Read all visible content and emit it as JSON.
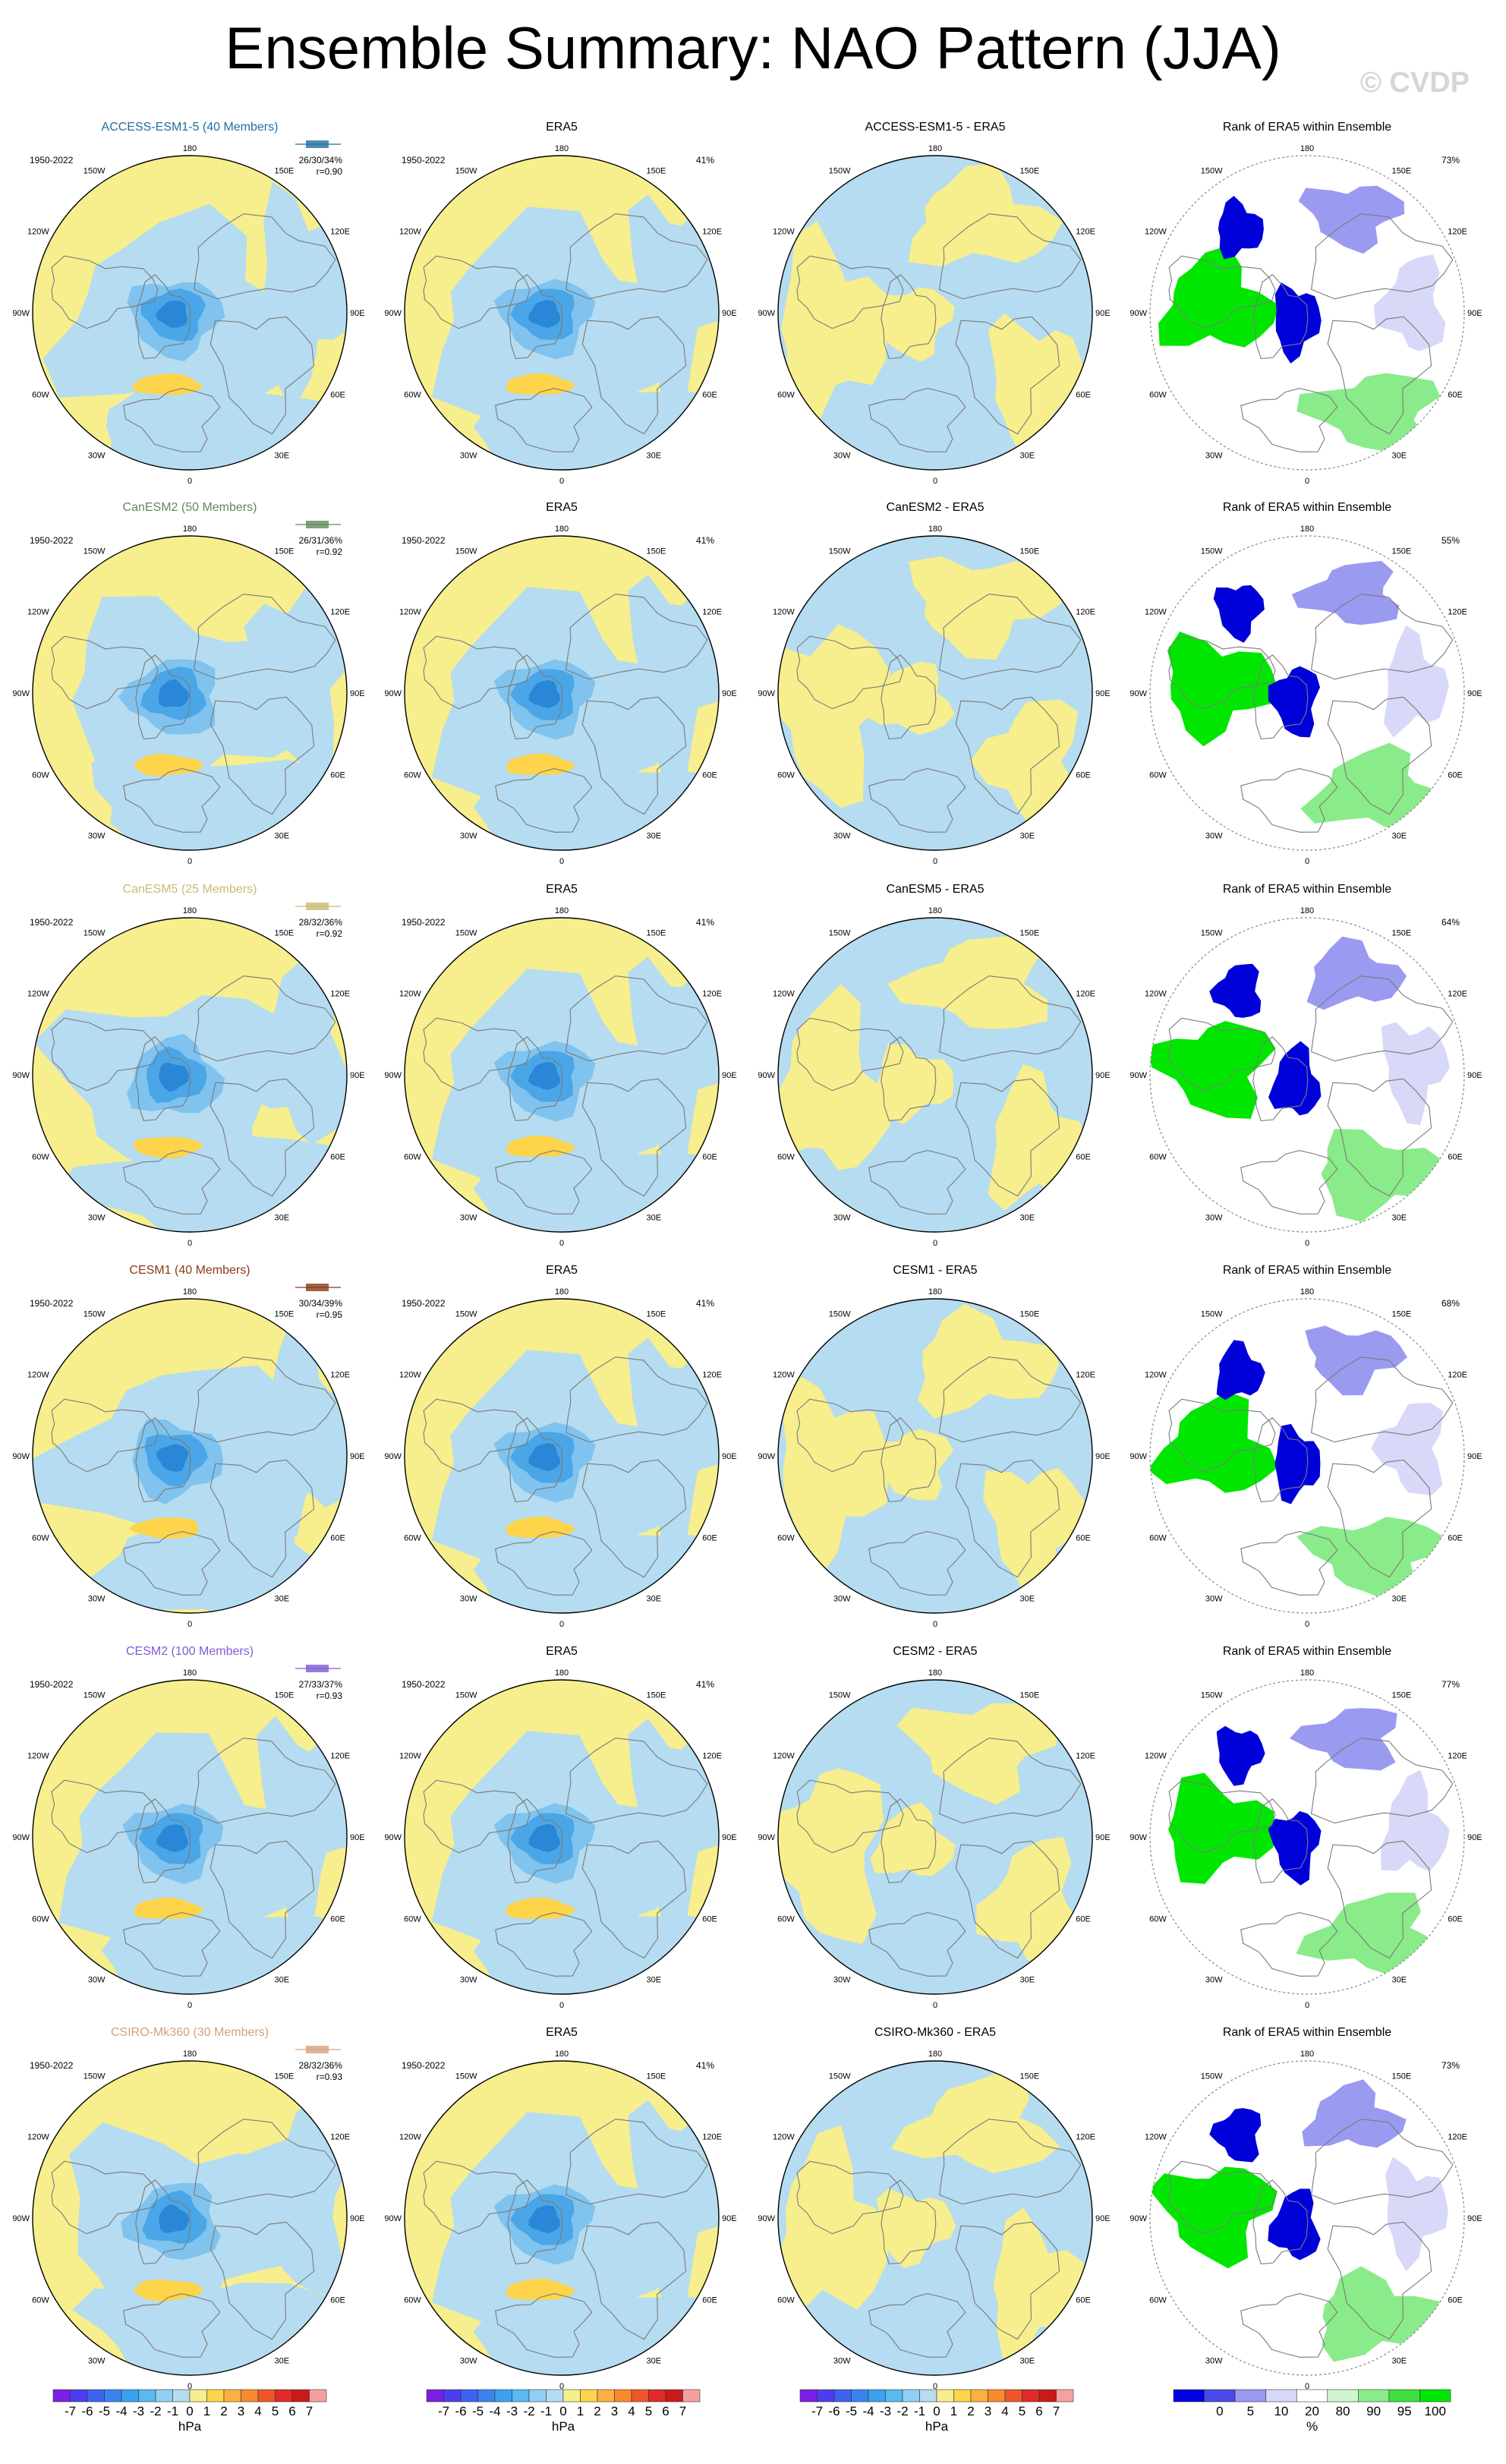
{
  "title": "Ensemble Summary: NAO Pattern (JJA)",
  "watermark": "© CVDP",
  "colors": {
    "land_outline": "#7a7a7a",
    "circle_outline": "#000000",
    "pos_light": "#f7ee8d",
    "pos_1": "#fdd44a",
    "pos_2": "#fbb040",
    "neg_light": "#b5dcf0",
    "neg_1": "#7fc3ee",
    "neg_2": "#4aa6e6",
    "neg_3": "#2a86d6",
    "rank_low_strong": "#0000d8",
    "rank_high_strong": "#00e600"
  },
  "map_labels": {
    "top": "180",
    "bottom": "0",
    "left": "90W",
    "right": "90E",
    "upper_left_1": "150W",
    "upper_left_2": "120W",
    "upper_right_1": "150E",
    "upper_right_2": "120E",
    "lower_left_1": "60W",
    "lower_left_2": "30W",
    "lower_right_1": "60E",
    "lower_right_2": "30E"
  },
  "rows": [
    {
      "model": "ACCESS-ESM1-5 (40 Members)",
      "model_color": "#1f6f9f",
      "period": "1950-2022",
      "stats": "26/30/34%",
      "corr": "r=0.90",
      "era5_period": "1950-2022",
      "era5_title": "ERA5",
      "era5_pct": "41%",
      "diff_title": "ACCESS-ESM1-5 - ERA5",
      "rank_title": "Rank of ERA5 within Ensemble",
      "rank_pct": "73%"
    },
    {
      "model": "CanESM2 (50 Members)",
      "model_color": "#5f8a5a",
      "period": "1950-2022",
      "stats": "26/31/36%",
      "corr": "r=0.92",
      "era5_period": "1950-2022",
      "era5_title": "ERA5",
      "era5_pct": "41%",
      "diff_title": "CanESM2 - ERA5",
      "rank_title": "Rank of ERA5 within Ensemble",
      "rank_pct": "55%"
    },
    {
      "model": "CanESM5 (25 Members)",
      "model_color": "#c8bb72",
      "period": "1950-2022",
      "stats": "28/32/36%",
      "corr": "r=0.92",
      "era5_period": "1950-2022",
      "era5_title": "ERA5",
      "era5_pct": "41%",
      "diff_title": "CanESM5 - ERA5",
      "rank_title": "Rank of ERA5 within Ensemble",
      "rank_pct": "64%"
    },
    {
      "model": "CESM1 (40 Members)",
      "model_color": "#8a3a14",
      "period": "1950-2022",
      "stats": "30/34/39%",
      "corr": "r=0.95",
      "era5_period": "1950-2022",
      "era5_title": "ERA5",
      "era5_pct": "41%",
      "diff_title": "CESM1 - ERA5",
      "rank_title": "Rank of ERA5 within Ensemble",
      "rank_pct": "68%"
    },
    {
      "model": "CESM2 (100 Members)",
      "model_color": "#7e5ad6",
      "period": "1950-2022",
      "stats": "27/33/37%",
      "corr": "r=0.93",
      "era5_period": "1950-2022",
      "era5_title": "ERA5",
      "era5_pct": "41%",
      "diff_title": "CESM2 - ERA5",
      "rank_title": "Rank of ERA5 within Ensemble",
      "rank_pct": "77%"
    },
    {
      "model": "CSIRO-Mk360 (30 Members)",
      "model_color": "#d6a079",
      "period": "1950-2022",
      "stats": "28/32/36%",
      "corr": "r=0.93",
      "era5_period": "1950-2022",
      "era5_title": "ERA5",
      "era5_pct": "41%",
      "diff_title": "CSIRO-Mk360 - ERA5",
      "rank_title": "Rank of ERA5 within Ensemble",
      "rank_pct": "73%"
    }
  ],
  "colorbar_hpa": {
    "tick_labels": [
      "-7",
      "-6",
      "-5",
      "-4",
      "-3",
      "-2",
      "-1",
      "0",
      "1",
      "2",
      "3",
      "4",
      "5",
      "6",
      "7"
    ],
    "unit": "hPa",
    "colors": [
      "#7b1ee6",
      "#4e3df0",
      "#3c62f0",
      "#3a82f0",
      "#3aa2f0",
      "#5ab9f0",
      "#8fd0f5",
      "#b5dcf0",
      "#f7ee8d",
      "#fdd44a",
      "#fbb040",
      "#f98a2c",
      "#f0552a",
      "#e02a2a",
      "#c81a1a",
      "#f5a0a0"
    ]
  },
  "colorbar_rank": {
    "tick_labels": [
      "0",
      "5",
      "10",
      "20",
      "80",
      "90",
      "95",
      "100"
    ],
    "unit": "%",
    "colors": [
      "#0000e0",
      "#4a4ae8",
      "#9a9af0",
      "#d8d8f8",
      "#ffffff",
      "#d0f5d0",
      "#8aeb8a",
      "#3ee03e",
      "#00e600"
    ]
  }
}
